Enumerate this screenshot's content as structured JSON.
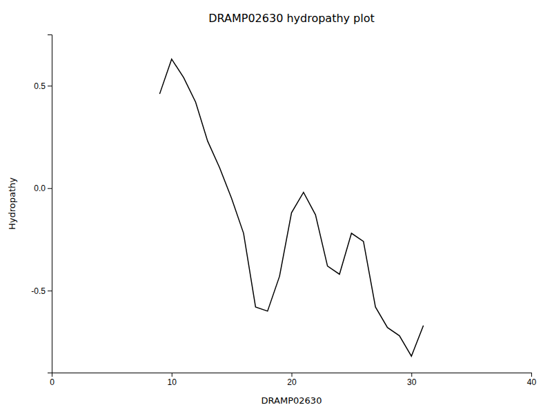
{
  "chart_data": {
    "type": "line",
    "title": "DRAMP02630 hydropathy plot",
    "xlabel": "DRAMP02630",
    "ylabel": "Hydropathy",
    "x": [
      9,
      10,
      11,
      12,
      13,
      14,
      15,
      16,
      17,
      18,
      19,
      20,
      21,
      22,
      23,
      24,
      25,
      26,
      27,
      28,
      29,
      30,
      31
    ],
    "values": [
      0.46,
      0.63,
      0.54,
      0.42,
      0.23,
      0.1,
      -0.05,
      -0.22,
      -0.58,
      -0.6,
      -0.43,
      -0.12,
      -0.02,
      -0.13,
      -0.38,
      -0.42,
      -0.22,
      -0.26,
      -0.58,
      -0.68,
      -0.72,
      -0.82,
      -0.67
    ],
    "color": "#000000",
    "xlim": [
      0,
      40
    ],
    "ylim": [
      -0.9,
      0.75
    ],
    "xticks": [
      0,
      10,
      20,
      30,
      40
    ],
    "yticks": [
      -0.5,
      {
        "value": 0,
        "label": "0.0"
      },
      0.5
    ]
  }
}
